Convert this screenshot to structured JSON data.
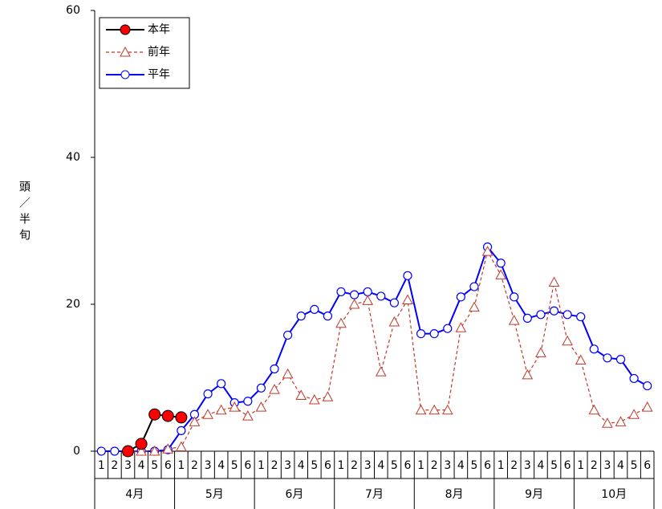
{
  "chart_data": {
    "type": "line",
    "y_label": "頭／半旬",
    "categories": [
      "1",
      "2",
      "3",
      "4",
      "5",
      "6",
      "1",
      "2",
      "3",
      "4",
      "5",
      "6",
      "1",
      "2",
      "3",
      "4",
      "5",
      "6",
      "1",
      "2",
      "3",
      "4",
      "5",
      "6",
      "1",
      "2",
      "3",
      "4",
      "5",
      "6",
      "1",
      "2",
      "3",
      "4",
      "5",
      "6",
      "1",
      "2",
      "3",
      "4",
      "5",
      "6"
    ],
    "category_groups": [
      "4月",
      "5月",
      "6月",
      "7月",
      "8月",
      "9月",
      "10月"
    ],
    "ylim": [
      0,
      60
    ],
    "yticks": [
      0,
      20,
      40,
      60
    ],
    "legend": "upper left",
    "series": [
      {
        "name": "本年",
        "color": "#000000",
        "marker_color": "#ff0000",
        "marker": "filled-circle",
        "dashed": false,
        "values": [
          null,
          null,
          0,
          1,
          5,
          4.8,
          4.6,
          null,
          null,
          null,
          null,
          null,
          null,
          null,
          null,
          null,
          null,
          null,
          null,
          null,
          null,
          null,
          null,
          null,
          null,
          null,
          null,
          null,
          null,
          null,
          null,
          null,
          null,
          null,
          null,
          null,
          null,
          null,
          null,
          null,
          null,
          null
        ]
      },
      {
        "name": "前年",
        "color": "#c0392b",
        "marker_color": "#c0392b",
        "marker": "triangle",
        "dashed": true,
        "values": [
          null,
          null,
          0,
          0,
          0,
          0.3,
          0.6,
          4,
          5,
          5.6,
          6,
          4.8,
          6,
          8.4,
          10.5,
          7.6,
          7,
          7.4,
          17.4,
          20,
          20.5,
          10.8,
          17.6,
          20.6,
          5.6,
          5.6,
          5.6,
          16.8,
          19.6,
          27.2,
          24,
          17.8,
          10.4,
          13.4,
          23,
          15,
          12.4,
          5.6,
          3.8,
          4,
          5,
          6
        ]
      },
      {
        "name": "平年",
        "color": "#0000ff",
        "marker_color": "#0000ff",
        "marker": "circle",
        "dashed": false,
        "values": [
          0,
          0,
          0,
          0,
          0,
          0.2,
          2.8,
          5,
          7.8,
          9.2,
          6.6,
          6.8,
          8.6,
          11.2,
          15.8,
          18.4,
          19.3,
          18.4,
          21.7,
          21.3,
          21.7,
          21.1,
          20.2,
          23.9,
          16,
          16,
          16.7,
          21,
          22.4,
          27.8,
          25.6,
          21,
          18.1,
          18.6,
          19.1,
          18.6,
          18.3,
          13.9,
          12.7,
          12.5,
          9.9,
          8.9
        ]
      }
    ]
  }
}
